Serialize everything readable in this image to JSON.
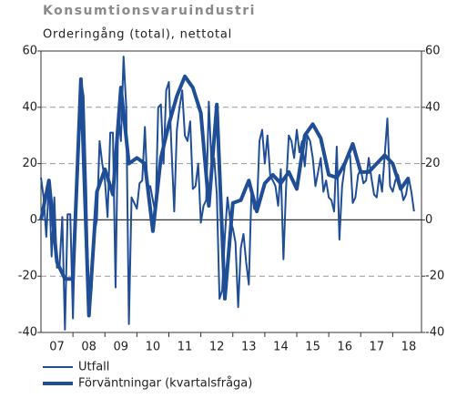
{
  "chart_data": {
    "type": "line",
    "title": "Konsumtionsvaruindustri",
    "subtitle": "Orderingång (total), nettotal",
    "xlim": [
      2007,
      2018.9
    ],
    "xticks": [
      {
        "value": 2007.5,
        "label": "07"
      },
      {
        "value": 2008.5,
        "label": "08"
      },
      {
        "value": 2009.5,
        "label": "09"
      },
      {
        "value": 2010.5,
        "label": "10"
      },
      {
        "value": 2011.5,
        "label": "11"
      },
      {
        "value": 2012.5,
        "label": "12"
      },
      {
        "value": 2013.5,
        "label": "13"
      },
      {
        "value": 2014.5,
        "label": "14"
      },
      {
        "value": 2015.5,
        "label": "15"
      },
      {
        "value": 2016.5,
        "label": "16"
      },
      {
        "value": 2017.5,
        "label": "17"
      },
      {
        "value": 2018.5,
        "label": "18"
      }
    ],
    "ylim": [
      -40,
      60
    ],
    "yticks": [
      -40,
      -20,
      0,
      20,
      40,
      60
    ],
    "y2lim": [
      -40,
      60
    ],
    "y2ticks": [
      -40,
      -20,
      0,
      20,
      40,
      60
    ],
    "grid": true,
    "series": [
      {
        "name": "Utfall",
        "color": "#1f4e96",
        "width": 2,
        "x": [
          2007,
          2007.083,
          2007.167,
          2007.25,
          2007.333,
          2007.417,
          2007.5,
          2007.583,
          2007.667,
          2007.75,
          2007.833,
          2007.917,
          2008,
          2008.083,
          2008.167,
          2008.25,
          2008.333,
          2008.417,
          2008.5,
          2008.583,
          2008.667,
          2008.75,
          2008.833,
          2008.917,
          2009,
          2009.083,
          2009.167,
          2009.25,
          2009.333,
          2009.417,
          2009.5,
          2009.583,
          2009.667,
          2009.75,
          2009.833,
          2009.917,
          2010,
          2010.083,
          2010.167,
          2010.25,
          2010.333,
          2010.417,
          2010.5,
          2010.583,
          2010.667,
          2010.75,
          2010.833,
          2010.917,
          2011,
          2011.083,
          2011.167,
          2011.25,
          2011.333,
          2011.417,
          2011.5,
          2011.583,
          2011.667,
          2011.75,
          2011.833,
          2011.917,
          2012,
          2012.083,
          2012.167,
          2012.25,
          2012.333,
          2012.417,
          2012.5,
          2012.583,
          2012.667,
          2012.75,
          2012.833,
          2012.917,
          2013,
          2013.083,
          2013.167,
          2013.25,
          2013.333,
          2013.417,
          2013.5,
          2013.583,
          2013.667,
          2013.75,
          2013.833,
          2013.917,
          2014,
          2014.083,
          2014.167,
          2014.25,
          2014.333,
          2014.417,
          2014.5,
          2014.583,
          2014.667,
          2014.75,
          2014.833,
          2014.917,
          2015,
          2015.083,
          2015.167,
          2015.25,
          2015.333,
          2015.417,
          2015.5,
          2015.583,
          2015.667,
          2015.75,
          2015.833,
          2015.917,
          2016,
          2016.083,
          2016.167,
          2016.25,
          2016.333,
          2016.417,
          2016.5,
          2016.583,
          2016.667,
          2016.75,
          2016.833,
          2016.917,
          2017,
          2017.083,
          2017.167,
          2017.25,
          2017.333,
          2017.417,
          2017.5,
          2017.583,
          2017.667,
          2017.75,
          2017.833,
          2017.917,
          2018,
          2018.083,
          2018.167,
          2018.25,
          2018.333,
          2018.417,
          2018.5,
          2018.583,
          2018.667
        ],
        "values": [
          15,
          8,
          -6,
          14,
          -13,
          8,
          -17,
          -16,
          1,
          -39,
          2,
          2,
          -35,
          5,
          30,
          50,
          44,
          10,
          -34,
          -25,
          -5,
          0,
          28,
          20,
          14,
          1,
          31,
          31,
          -24,
          38,
          28,
          58,
          40,
          -37,
          8,
          6,
          4,
          13,
          14,
          33,
          10,
          12,
          7,
          2,
          40,
          41,
          20,
          46,
          49,
          25,
          3,
          32,
          40,
          46,
          30,
          28,
          35,
          11,
          12,
          20,
          -1,
          5,
          7,
          42,
          20,
          22,
          9,
          -28,
          -25,
          -6,
          8,
          0,
          -3,
          -8,
          -31,
          -10,
          -5,
          -15,
          -23,
          10,
          4,
          3,
          28,
          32,
          20,
          30,
          16,
          14,
          12,
          5,
          18,
          -14,
          12,
          30,
          28,
          22,
          32,
          24,
          28,
          19,
          30,
          28,
          22,
          12,
          17,
          22,
          10,
          14,
          8,
          7,
          3,
          26,
          -7,
          12,
          19,
          23,
          23,
          6,
          8,
          16,
          18,
          13,
          14,
          22,
          15,
          9,
          8,
          16,
          10,
          23,
          36,
          12,
          10,
          14,
          16,
          12,
          7,
          9,
          15,
          10,
          3
        ]
      },
      {
        "name": "Förväntningar (kvartalsfråga)",
        "color": "#1f4e96",
        "width": 4,
        "x": [
          2007,
          2007.25,
          2007.5,
          2007.75,
          2008,
          2008.25,
          2008.5,
          2008.75,
          2009,
          2009.25,
          2009.5,
          2009.75,
          2010,
          2010.25,
          2010.5,
          2010.75,
          2011,
          2011.25,
          2011.5,
          2011.75,
          2012,
          2012.25,
          2012.5,
          2012.75,
          2013,
          2013.25,
          2013.5,
          2013.75,
          2014,
          2014.25,
          2014.5,
          2014.75,
          2015,
          2015.25,
          2015.5,
          2015.75,
          2016,
          2016.25,
          2016.5,
          2016.75,
          2017,
          2017.25,
          2017.5,
          2017.75,
          2018,
          2018.25,
          2018.5
        ],
        "values": [
          0,
          14,
          -15,
          -21,
          -21,
          50,
          -34,
          10,
          18,
          9,
          47,
          20,
          22,
          20,
          -4,
          22,
          34,
          44,
          51,
          47,
          38,
          5,
          41,
          -28,
          6,
          7,
          14,
          3,
          13,
          16,
          13,
          17,
          11,
          30,
          34,
          29,
          16,
          15,
          20,
          27,
          17,
          17,
          20,
          23,
          20,
          11,
          15
        ]
      }
    ]
  }
}
